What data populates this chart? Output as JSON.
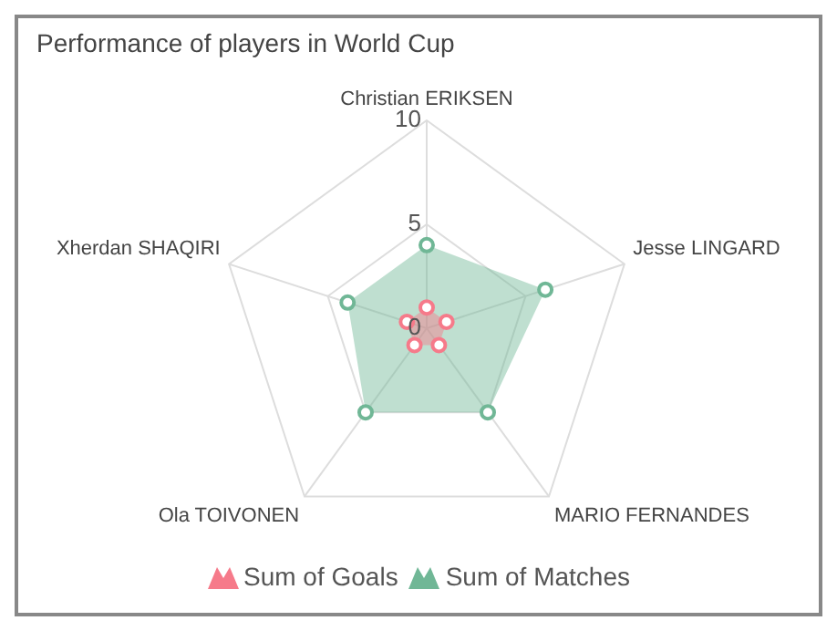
{
  "chart_data": {
    "type": "radar",
    "title": "Performance of players in World Cup",
    "categories": [
      "Christian ERIKSEN",
      "Jesse LINGARD",
      "MARIO FERNANDES",
      "Ola TOIVONEN",
      "Xherdan SHAQIRI"
    ],
    "series": [
      {
        "name": "Sum of Goals",
        "color": "#f67a8a",
        "values": [
          1,
          1,
          1,
          1,
          1
        ]
      },
      {
        "name": "Sum of Matches",
        "color": "#70b796",
        "values": [
          4,
          6,
          5,
          5,
          4
        ]
      }
    ],
    "ylim": [
      0,
      10
    ],
    "yticks": [
      0,
      5,
      10
    ],
    "grid": true,
    "legend": "bottom",
    "marker": "circle"
  }
}
